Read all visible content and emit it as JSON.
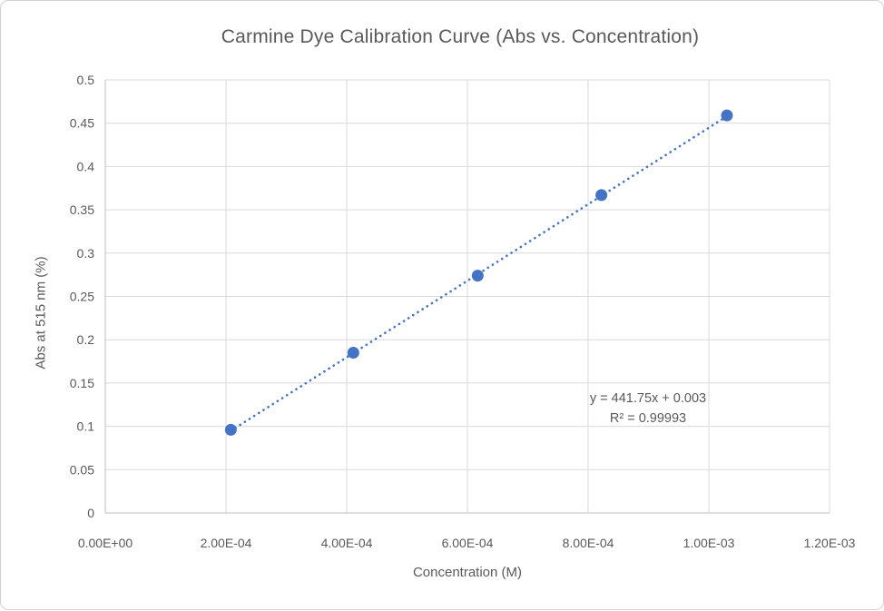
{
  "window": {
    "background": "#FFFFFF",
    "border_color": "#D2D2D2"
  },
  "chart_data": {
    "type": "scatter",
    "title": "Carmine Dye Calibration Curve (Abs vs. Concentration)",
    "xlabel": "Concentration (M)",
    "ylabel": "Abs at 515 nm (%)",
    "xlim": [
      0,
      0.0012
    ],
    "ylim": [
      0,
      0.5
    ],
    "grid": true,
    "legend": false,
    "x_ticks": [
      {
        "value": 0.0,
        "label": "0.00E+00"
      },
      {
        "value": 0.0002,
        "label": "2.00E-04"
      },
      {
        "value": 0.0004,
        "label": "4.00E-04"
      },
      {
        "value": 0.0006,
        "label": "6.00E-04"
      },
      {
        "value": 0.0008,
        "label": "8.00E-04"
      },
      {
        "value": 0.001,
        "label": "1.00E-03"
      },
      {
        "value": 0.0012,
        "label": "1.20E-03"
      }
    ],
    "y_ticks": [
      {
        "value": 0.0,
        "label": "0"
      },
      {
        "value": 0.05,
        "label": "0.05"
      },
      {
        "value": 0.1,
        "label": "0.1"
      },
      {
        "value": 0.15,
        "label": "0.15"
      },
      {
        "value": 0.2,
        "label": "0.2"
      },
      {
        "value": 0.25,
        "label": "0.25"
      },
      {
        "value": 0.3,
        "label": "0.3"
      },
      {
        "value": 0.35,
        "label": "0.35"
      },
      {
        "value": 0.4,
        "label": "0.4"
      },
      {
        "value": 0.45,
        "label": "0.45"
      },
      {
        "value": 0.5,
        "label": "0.5"
      }
    ],
    "series": [
      {
        "name": "calibration-points",
        "marker": "circle",
        "marker_color": "#4472C4",
        "marker_radius": 6.5,
        "points": [
          {
            "x": 0.000208,
            "y": 0.096
          },
          {
            "x": 0.000411,
            "y": 0.185
          },
          {
            "x": 0.000617,
            "y": 0.274
          },
          {
            "x": 0.000822,
            "y": 0.367
          },
          {
            "x": 0.00103,
            "y": 0.459
          }
        ]
      }
    ],
    "trendline": {
      "slope": 441.75,
      "intercept": 0.003,
      "x_start": 0.000208,
      "x_end": 0.00103,
      "style": "dotted",
      "color": "#4472C4",
      "equation_label": "y = 441.75x + 0.003",
      "r_squared_label": "R² = 0.99993"
    },
    "colors": {
      "gridline": "#D9D9D9",
      "axis_line": "#BFBFBF",
      "tick_text": "#595959",
      "title_text": "#595959",
      "equation_text": "#595959"
    }
  }
}
